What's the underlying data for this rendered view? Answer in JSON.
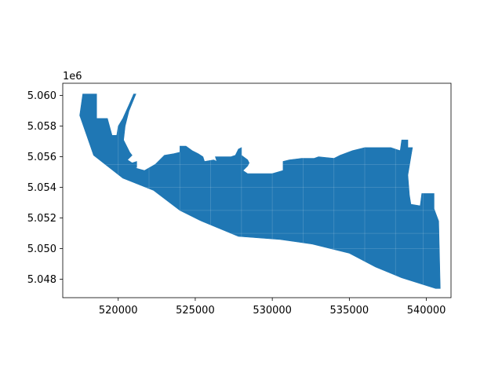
{
  "chart_data": {
    "type": "map",
    "title": "",
    "xlabel": "",
    "ylabel": "",
    "offset_label": "1e6",
    "xlim": [
      516400,
      541600
    ],
    "ylim": [
      5.0468,
      5.0608
    ],
    "x_ticks": [
      520000,
      525000,
      530000,
      535000,
      540000
    ],
    "x_tick_labels": [
      "520000",
      "525000",
      "530000",
      "535000",
      "540000"
    ],
    "y_ticks": [
      5.048,
      5.05,
      5.052,
      5.054,
      5.056,
      5.058,
      5.06
    ],
    "y_tick_labels": [
      "5.048",
      "5.050",
      "5.052",
      "5.054",
      "5.056",
      "5.058",
      "5.060"
    ],
    "grid": false,
    "fill_color": "#1f77b4",
    "region_outline": [
      [
        517700,
        5.0601
      ],
      [
        518600,
        5.0601
      ],
      [
        518600,
        5.0585
      ],
      [
        519300,
        5.0585
      ],
      [
        519600,
        5.0574
      ],
      [
        519900,
        5.0574
      ],
      [
        520000,
        5.058
      ],
      [
        520300,
        5.0585
      ],
      [
        520700,
        5.0594
      ],
      [
        521000,
        5.0601
      ],
      [
        521150,
        5.0601
      ],
      [
        520700,
        5.059
      ],
      [
        520450,
        5.058
      ],
      [
        520350,
        5.0571
      ],
      [
        520750,
        5.0563
      ],
      [
        520900,
        5.0561
      ],
      [
        520600,
        5.0558
      ],
      [
        520900,
        5.0556
      ],
      [
        521200,
        5.0557
      ],
      [
        521200,
        5.0553
      ],
      [
        521000,
        5.0553
      ],
      [
        521700,
        5.0551
      ],
      [
        522400,
        5.0555
      ],
      [
        523000,
        5.0561
      ],
      [
        523600,
        5.0562
      ],
      [
        524000,
        5.0563
      ],
      [
        524000,
        5.0567
      ],
      [
        524400,
        5.0567
      ],
      [
        524800,
        5.0564
      ],
      [
        525200,
        5.0562
      ],
      [
        525500,
        5.056
      ],
      [
        525600,
        5.0557
      ],
      [
        526200,
        5.0558
      ],
      [
        526400,
        5.0557
      ],
      [
        526300,
        5.056
      ],
      [
        527300,
        5.056
      ],
      [
        527600,
        5.0561
      ],
      [
        527800,
        5.0565
      ],
      [
        528000,
        5.0566
      ],
      [
        528000,
        5.0561
      ],
      [
        528400,
        5.0558
      ],
      [
        528500,
        5.0556
      ],
      [
        528400,
        5.0554
      ],
      [
        528100,
        5.0551
      ],
      [
        528400,
        5.0549
      ],
      [
        530000,
        5.0549
      ],
      [
        530700,
        5.0551
      ],
      [
        530700,
        5.0557
      ],
      [
        531100,
        5.0558
      ],
      [
        531900,
        5.0559
      ],
      [
        532700,
        5.0559
      ],
      [
        533000,
        5.056
      ],
      [
        534000,
        5.0559
      ],
      [
        534400,
        5.0561
      ],
      [
        535200,
        5.0564
      ],
      [
        536000,
        5.0566
      ],
      [
        537000,
        5.0566
      ],
      [
        537700,
        5.0566
      ],
      [
        538000,
        5.0565
      ],
      [
        538300,
        5.0564
      ],
      [
        538400,
        5.0571
      ],
      [
        538800,
        5.0571
      ],
      [
        538800,
        5.0566
      ],
      [
        539100,
        5.0566
      ],
      [
        539000,
        5.056
      ],
      [
        538800,
        5.0548
      ],
      [
        538900,
        5.0535
      ],
      [
        539000,
        5.0529
      ],
      [
        539600,
        5.0528
      ],
      [
        539700,
        5.0536
      ],
      [
        540500,
        5.0536
      ],
      [
        540500,
        5.0526
      ],
      [
        540800,
        5.0518
      ],
      [
        540900,
        5.0474
      ],
      [
        540600,
        5.0474
      ],
      [
        538400,
        5.0481
      ],
      [
        536700,
        5.0488
      ],
      [
        535000,
        5.0497
      ],
      [
        532600,
        5.0503
      ],
      [
        530500,
        5.0506
      ],
      [
        527800,
        5.0508
      ],
      [
        525400,
        5.0518
      ],
      [
        524000,
        5.0525
      ],
      [
        522300,
        5.0538
      ],
      [
        520300,
        5.0546
      ],
      [
        518400,
        5.0561
      ],
      [
        517500,
        5.0587
      ]
    ]
  }
}
